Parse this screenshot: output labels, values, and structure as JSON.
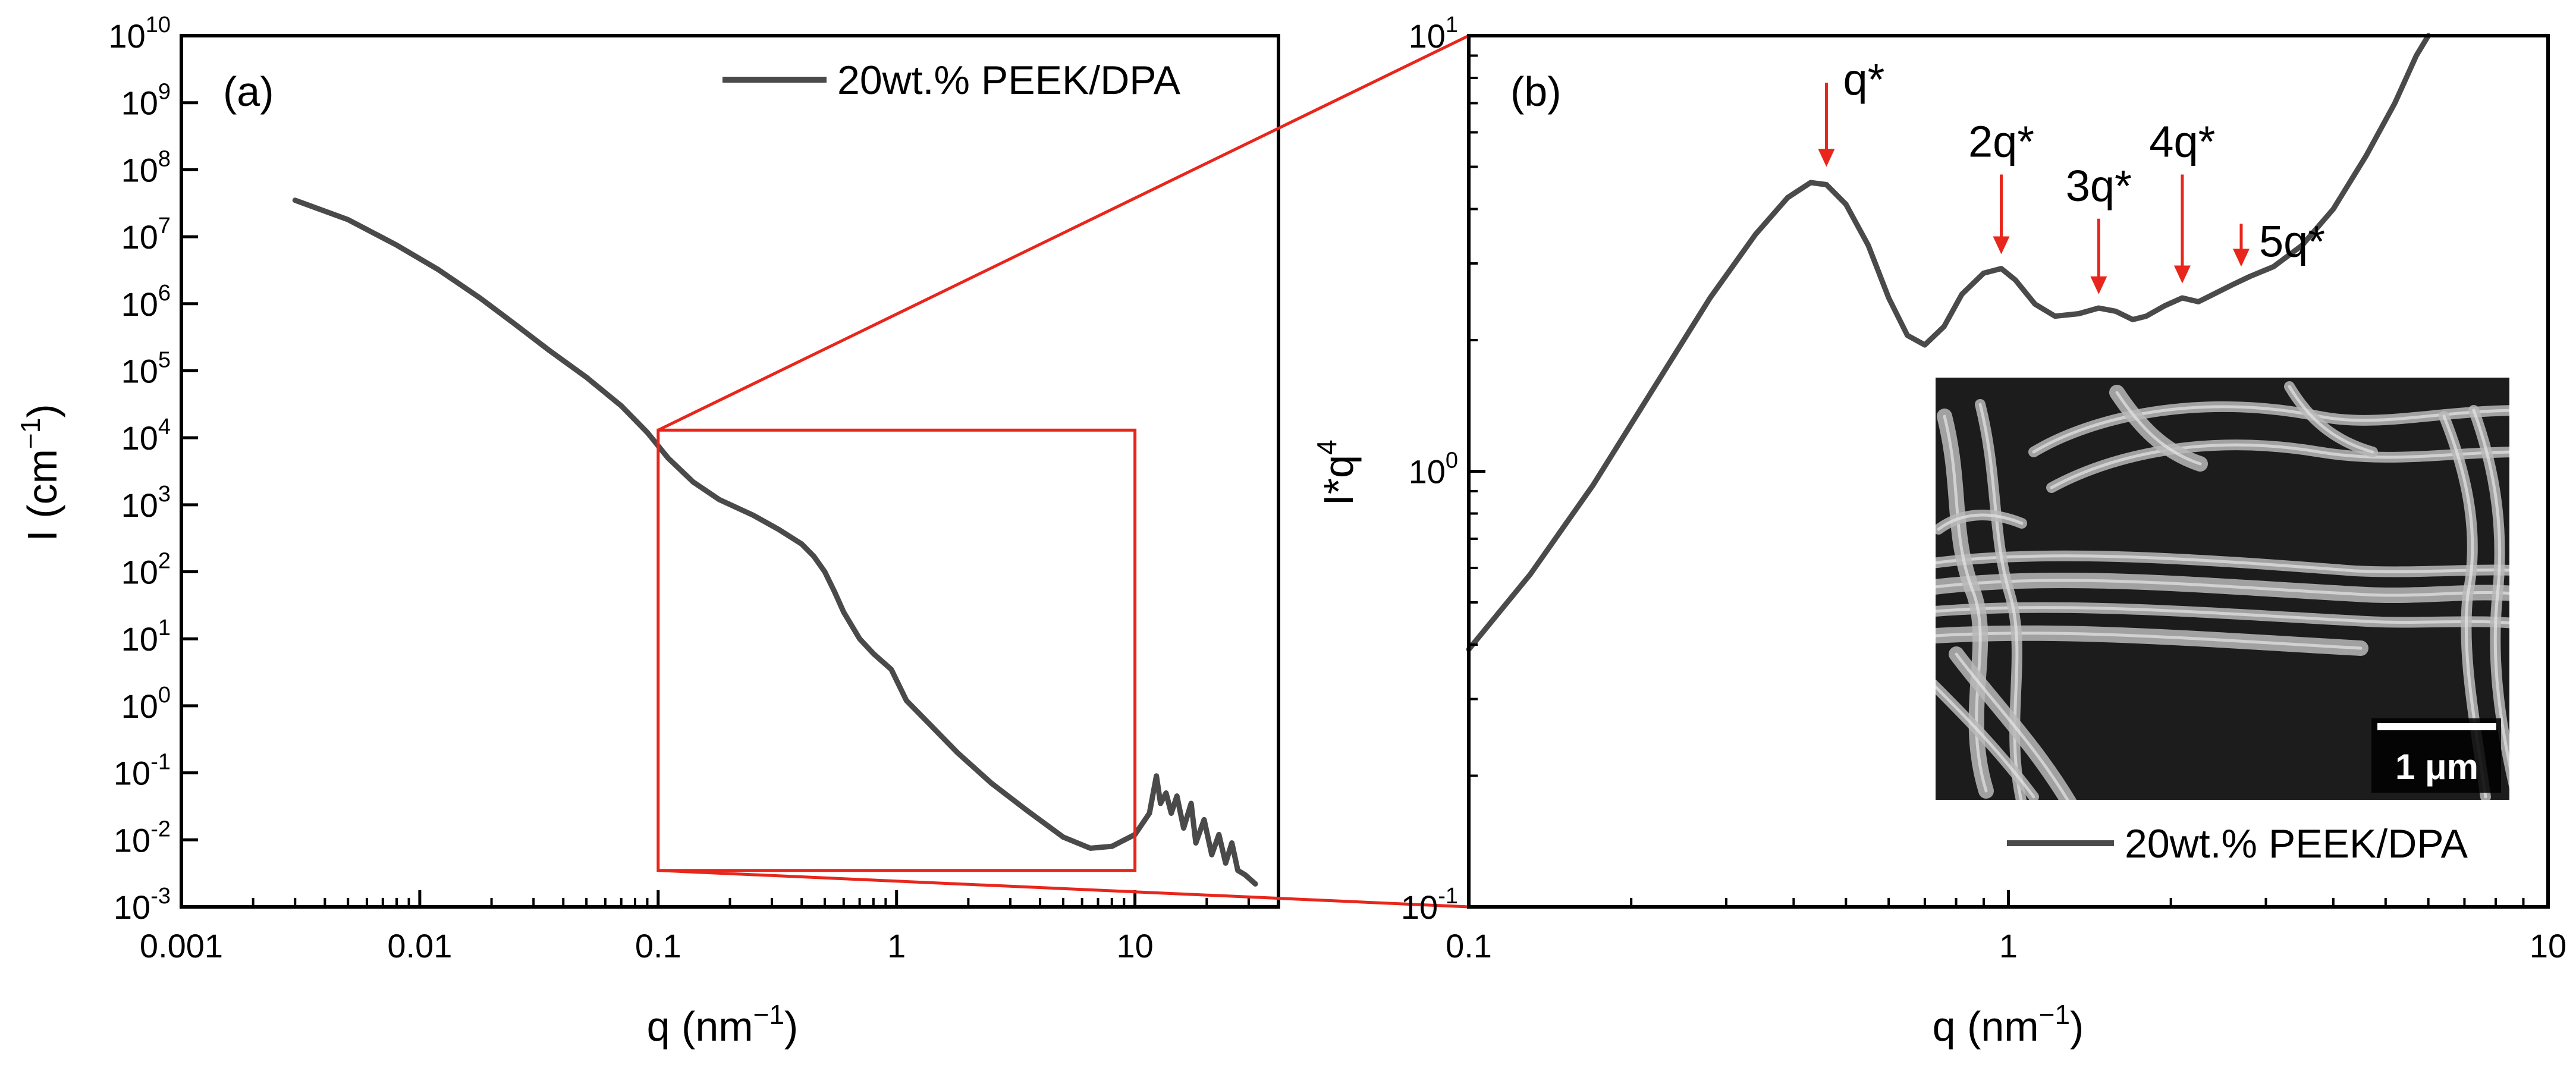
{
  "colors": {
    "series": "#4a4a4a",
    "annotation": "#e8261b",
    "axis": "#000000",
    "inset_bg": "#1c1c1c",
    "inset_fiber": "#b9b9b9"
  },
  "chart_data": [
    {
      "panel": "(a)",
      "type": "line",
      "xscale": "log",
      "yscale": "log",
      "xlabel": "q (nm",
      "xlabel_exp": "−1",
      "xlabel_close": ")",
      "ylabel": "I (cm",
      "ylabel_exp": "−1",
      "ylabel_close": ")",
      "xlim": [
        0.001,
        40
      ],
      "ylim": [
        0.001,
        10000000000
      ],
      "xticks": [
        {
          "value": 0.001,
          "label": "0.001"
        },
        {
          "value": 0.01,
          "label": "0.01"
        },
        {
          "value": 0.1,
          "label": "0.1"
        },
        {
          "value": 1,
          "label": "1"
        },
        {
          "value": 10,
          "label": "10"
        }
      ],
      "yticks": [
        {
          "value": 0.001,
          "base": "10",
          "exp": "-3"
        },
        {
          "value": 0.01,
          "base": "10",
          "exp": "-2"
        },
        {
          "value": 0.1,
          "base": "10",
          "exp": "-1"
        },
        {
          "value": 1,
          "base": "10",
          "exp": "0"
        },
        {
          "value": 10,
          "base": "10",
          "exp": "1"
        },
        {
          "value": 100,
          "base": "10",
          "exp": "2"
        },
        {
          "value": 1000,
          "base": "10",
          "exp": "3"
        },
        {
          "value": 10000,
          "base": "10",
          "exp": "4"
        },
        {
          "value": 100000,
          "base": "10",
          "exp": "5"
        },
        {
          "value": 1000000,
          "base": "10",
          "exp": "6"
        },
        {
          "value": 10000000,
          "base": "10",
          "exp": "7"
        },
        {
          "value": 100000000,
          "base": "10",
          "exp": "8"
        },
        {
          "value": 1000000000,
          "base": "10",
          "exp": "9"
        },
        {
          "value": 10000000000,
          "base": "10",
          "exp": "10"
        }
      ],
      "legend": {
        "label": "20wt.% PEEK/DPA",
        "position": "top-right"
      },
      "series": [
        {
          "name": "20wt.% PEEK/DPA",
          "points": [
            [
              0.003,
              35000000
            ],
            [
              0.005,
              18000000
            ],
            [
              0.008,
              7500000
            ],
            [
              0.012,
              3200000
            ],
            [
              0.018,
              1200000
            ],
            [
              0.025,
              500000
            ],
            [
              0.035,
              200000
            ],
            [
              0.05,
              80000
            ],
            [
              0.07,
              30000
            ],
            [
              0.09,
              12000
            ],
            [
              0.11,
              5000
            ],
            [
              0.14,
              2200
            ],
            [
              0.18,
              1200
            ],
            [
              0.25,
              700
            ],
            [
              0.32,
              430
            ],
            [
              0.4,
              260
            ],
            [
              0.45,
              170
            ],
            [
              0.5,
              100
            ],
            [
              0.55,
              50
            ],
            [
              0.6,
              25
            ],
            [
              0.7,
              10
            ],
            [
              0.8,
              6
            ],
            [
              0.95,
              3.5
            ],
            [
              1.1,
              1.2
            ],
            [
              1.4,
              0.5
            ],
            [
              1.8,
              0.2
            ],
            [
              2.5,
              0.07
            ],
            [
              3.5,
              0.028
            ],
            [
              5,
              0.011
            ],
            [
              6.5,
              0.0075
            ],
            [
              8,
              0.008
            ],
            [
              10,
              0.012
            ],
            [
              11.5,
              0.025
            ],
            [
              12.3,
              0.09
            ],
            [
              12.8,
              0.035
            ],
            [
              13.5,
              0.05
            ],
            [
              14.2,
              0.025
            ],
            [
              15,
              0.045
            ],
            [
              16,
              0.015
            ],
            [
              17.2,
              0.035
            ],
            [
              18,
              0.009
            ],
            [
              19.5,
              0.02
            ],
            [
              21,
              0.006
            ],
            [
              22.5,
              0.012
            ],
            [
              24,
              0.0045
            ],
            [
              25.5,
              0.009
            ],
            [
              27,
              0.0035
            ],
            [
              29,
              0.003
            ],
            [
              32,
              0.0022
            ]
          ]
        }
      ],
      "zoom_box": {
        "x": [
          0.1,
          10
        ],
        "y": [
          0.0035,
          13000
        ]
      }
    },
    {
      "panel": "(b)",
      "type": "line",
      "xscale": "log",
      "yscale": "log",
      "xlabel": "q (nm",
      "xlabel_exp": "−1",
      "xlabel_close": ")",
      "ylabel": "I*q",
      "ylabel_exp": "4",
      "xlim": [
        0.1,
        10
      ],
      "ylim": [
        0.1,
        10
      ],
      "xticks": [
        {
          "value": 0.1,
          "label": "0.1"
        },
        {
          "value": 1,
          "label": "1"
        },
        {
          "value": 10,
          "label": "10"
        }
      ],
      "yticks": [
        {
          "value": 0.1,
          "base": "10",
          "exp": "-1"
        },
        {
          "value": 1,
          "base": "10",
          "exp": "0"
        },
        {
          "value": 10,
          "base": "10",
          "exp": "1"
        }
      ],
      "legend": {
        "label": "20wt.% PEEK/DPA",
        "position": "bottom-right"
      },
      "series": [
        {
          "name": "20wt.% PEEK/DPA",
          "points": [
            [
              0.1,
              0.39
            ],
            [
              0.13,
              0.58
            ],
            [
              0.17,
              0.93
            ],
            [
              0.22,
              1.55
            ],
            [
              0.28,
              2.5
            ],
            [
              0.34,
              3.5
            ],
            [
              0.39,
              4.25
            ],
            [
              0.43,
              4.6
            ],
            [
              0.46,
              4.55
            ],
            [
              0.5,
              4.1
            ],
            [
              0.55,
              3.3
            ],
            [
              0.6,
              2.5
            ],
            [
              0.65,
              2.05
            ],
            [
              0.7,
              1.95
            ],
            [
              0.76,
              2.15
            ],
            [
              0.82,
              2.55
            ],
            [
              0.9,
              2.85
            ],
            [
              0.97,
              2.92
            ],
            [
              1.03,
              2.75
            ],
            [
              1.12,
              2.42
            ],
            [
              1.22,
              2.27
            ],
            [
              1.35,
              2.3
            ],
            [
              1.47,
              2.37
            ],
            [
              1.58,
              2.33
            ],
            [
              1.7,
              2.23
            ],
            [
              1.8,
              2.27
            ],
            [
              1.95,
              2.4
            ],
            [
              2.1,
              2.5
            ],
            [
              2.25,
              2.45
            ],
            [
              2.4,
              2.55
            ],
            [
              2.6,
              2.68
            ],
            [
              2.8,
              2.8
            ],
            [
              3.1,
              2.95
            ],
            [
              3.5,
              3.3
            ],
            [
              4.0,
              4.0
            ],
            [
              4.6,
              5.3
            ],
            [
              5.2,
              7.0
            ],
            [
              5.7,
              9.0
            ],
            [
              6.0,
              10.0
            ]
          ]
        }
      ],
      "annotations": [
        {
          "label": "q*",
          "q": 0.46,
          "arrow_from": 7.8,
          "arrow_to": 5.0
        },
        {
          "label": "2q*",
          "q": 0.97,
          "arrow_from": 4.8,
          "arrow_to": 3.15
        },
        {
          "label": "3q*",
          "q": 1.47,
          "arrow_from": 3.8,
          "arrow_to": 2.55
        },
        {
          "label": "4q*",
          "q": 2.1,
          "arrow_from": 4.8,
          "arrow_to": 2.7
        },
        {
          "label": "5q*",
          "q": 2.7,
          "arrow_from": 3.7,
          "arrow_to": 2.95
        }
      ],
      "inset": {
        "type": "SEM micrograph",
        "scale_bar_label": "1 μm"
      }
    }
  ]
}
